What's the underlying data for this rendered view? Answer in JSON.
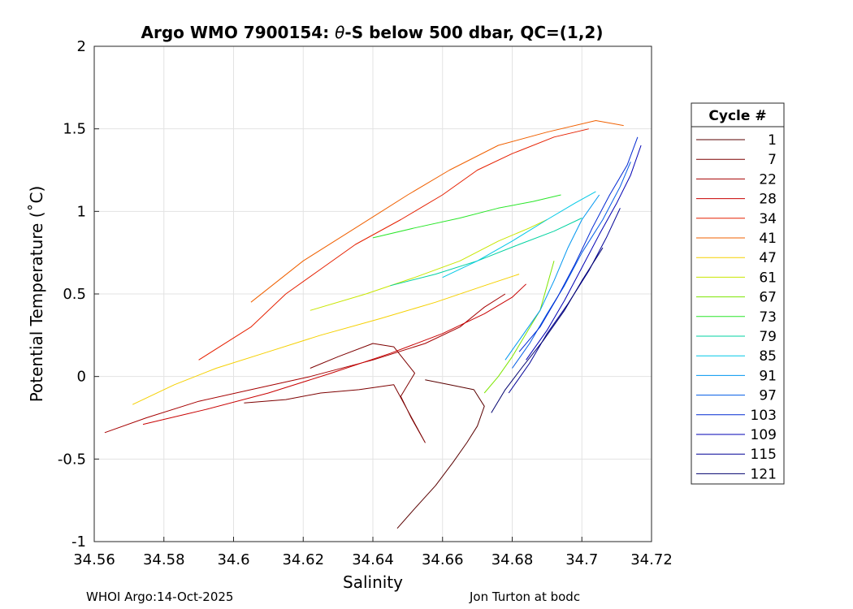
{
  "chart_data": {
    "type": "line",
    "title_prefix": "Argo WMO 7900154: ",
    "title_theta": "θ",
    "title_suffix": "-S below 500 dbar,  QC=(1,2)",
    "xlabel": "Salinity",
    "ylabel": "Potential Temperature (˚C)",
    "xlim": [
      34.56,
      34.72
    ],
    "ylim": [
      -1,
      2
    ],
    "xticks": [
      34.56,
      34.58,
      34.6,
      34.62,
      34.64,
      34.66,
      34.68,
      34.7,
      34.72
    ],
    "xtick_labels": [
      "34.56",
      "34.58",
      "34.6",
      "34.62",
      "34.64",
      "34.66",
      "34.68",
      "34.7",
      "34.72"
    ],
    "yticks": [
      -1,
      -0.5,
      0,
      0.5,
      1,
      1.5,
      2
    ],
    "ytick_labels": [
      "-1",
      "-0.5",
      "0",
      "0.5",
      "1",
      "1.5",
      "2"
    ],
    "grid": true,
    "legend_title": "Cycle #",
    "legend_position": "right",
    "series": [
      {
        "name": "1",
        "color": "#5a0000",
        "points": [
          [
            34.647,
            -0.92
          ],
          [
            34.652,
            -0.8
          ],
          [
            34.658,
            -0.66
          ],
          [
            34.663,
            -0.52
          ],
          [
            34.667,
            -0.4
          ],
          [
            34.67,
            -0.3
          ],
          [
            34.672,
            -0.18
          ],
          [
            34.669,
            -0.08
          ],
          [
            34.662,
            -0.05
          ],
          [
            34.655,
            -0.02
          ]
        ]
      },
      {
        "name": "7",
        "color": "#7d0000",
        "points": [
          [
            34.603,
            -0.16
          ],
          [
            34.615,
            -0.14
          ],
          [
            34.625,
            -0.1
          ],
          [
            34.636,
            -0.08
          ],
          [
            34.646,
            -0.05
          ],
          [
            34.655,
            -0.4
          ],
          [
            34.651,
            -0.25
          ],
          [
            34.648,
            -0.12
          ],
          [
            34.652,
            0.02
          ],
          [
            34.646,
            0.18
          ],
          [
            34.64,
            0.2
          ],
          [
            34.63,
            0.12
          ],
          [
            34.622,
            0.05
          ]
        ]
      },
      {
        "name": "22",
        "color": "#a50000",
        "points": [
          [
            34.563,
            -0.34
          ],
          [
            34.575,
            -0.25
          ],
          [
            34.59,
            -0.15
          ],
          [
            34.605,
            -0.08
          ],
          [
            34.622,
            0.0
          ],
          [
            34.64,
            0.1
          ],
          [
            34.655,
            0.2
          ],
          [
            34.665,
            0.3
          ],
          [
            34.672,
            0.42
          ],
          [
            34.678,
            0.5
          ]
        ]
      },
      {
        "name": "28",
        "color": "#c80000",
        "points": [
          [
            34.574,
            -0.29
          ],
          [
            34.592,
            -0.2
          ],
          [
            34.61,
            -0.1
          ],
          [
            34.628,
            0.02
          ],
          [
            34.645,
            0.14
          ],
          [
            34.66,
            0.26
          ],
          [
            34.672,
            0.38
          ],
          [
            34.68,
            0.48
          ],
          [
            34.684,
            0.56
          ]
        ]
      },
      {
        "name": "34",
        "color": "#e62000",
        "points": [
          [
            34.59,
            0.1
          ],
          [
            34.605,
            0.3
          ],
          [
            34.615,
            0.5
          ],
          [
            34.625,
            0.65
          ],
          [
            34.635,
            0.8
          ],
          [
            34.648,
            0.95
          ],
          [
            34.66,
            1.1
          ],
          [
            34.67,
            1.25
          ],
          [
            34.68,
            1.35
          ],
          [
            34.692,
            1.45
          ],
          [
            34.702,
            1.5
          ]
        ]
      },
      {
        "name": "41",
        "color": "#f06000",
        "points": [
          [
            34.605,
            0.45
          ],
          [
            34.62,
            0.7
          ],
          [
            34.635,
            0.9
          ],
          [
            34.65,
            1.1
          ],
          [
            34.662,
            1.25
          ],
          [
            34.676,
            1.4
          ],
          [
            34.69,
            1.48
          ],
          [
            34.704,
            1.55
          ],
          [
            34.712,
            1.52
          ]
        ]
      },
      {
        "name": "47",
        "color": "#f5d000",
        "points": [
          [
            34.571,
            -0.17
          ],
          [
            34.583,
            -0.05
          ],
          [
            34.595,
            0.05
          ],
          [
            34.61,
            0.15
          ],
          [
            34.625,
            0.25
          ],
          [
            34.642,
            0.35
          ],
          [
            34.658,
            0.45
          ],
          [
            34.672,
            0.55
          ],
          [
            34.682,
            0.62
          ]
        ]
      },
      {
        "name": "61",
        "color": "#c8e600",
        "points": [
          [
            34.622,
            0.4
          ],
          [
            34.638,
            0.5
          ],
          [
            34.652,
            0.6
          ],
          [
            34.665,
            0.7
          ],
          [
            34.676,
            0.82
          ],
          [
            34.685,
            0.9
          ],
          [
            34.69,
            0.95
          ]
        ]
      },
      {
        "name": "67",
        "color": "#7de600",
        "points": [
          [
            34.672,
            -0.1
          ],
          [
            34.676,
            0.0
          ],
          [
            34.68,
            0.12
          ],
          [
            34.684,
            0.26
          ],
          [
            34.688,
            0.4
          ],
          [
            34.69,
            0.55
          ],
          [
            34.692,
            0.7
          ]
        ]
      },
      {
        "name": "73",
        "color": "#28e628",
        "points": [
          [
            34.64,
            0.84
          ],
          [
            34.652,
            0.9
          ],
          [
            34.665,
            0.96
          ],
          [
            34.676,
            1.02
          ],
          [
            34.686,
            1.06
          ],
          [
            34.694,
            1.1
          ]
        ]
      },
      {
        "name": "79",
        "color": "#00d2a0",
        "points": [
          [
            34.645,
            0.55
          ],
          [
            34.658,
            0.62
          ],
          [
            34.67,
            0.7
          ],
          [
            34.682,
            0.8
          ],
          [
            34.692,
            0.88
          ],
          [
            34.7,
            0.96
          ]
        ]
      },
      {
        "name": "85",
        "color": "#00c8e6",
        "points": [
          [
            34.66,
            0.6
          ],
          [
            34.67,
            0.7
          ],
          [
            34.68,
            0.82
          ],
          [
            34.69,
            0.95
          ],
          [
            34.698,
            1.05
          ],
          [
            34.704,
            1.12
          ]
        ]
      },
      {
        "name": "91",
        "color": "#0096f0",
        "points": [
          [
            34.678,
            0.1
          ],
          [
            34.683,
            0.25
          ],
          [
            34.688,
            0.4
          ],
          [
            34.692,
            0.58
          ],
          [
            34.696,
            0.78
          ],
          [
            34.7,
            0.95
          ],
          [
            34.705,
            1.1
          ]
        ]
      },
      {
        "name": "97",
        "color": "#005ae6",
        "points": [
          [
            34.68,
            0.05
          ],
          [
            34.685,
            0.2
          ],
          [
            34.69,
            0.38
          ],
          [
            34.695,
            0.55
          ],
          [
            34.7,
            0.75
          ],
          [
            34.706,
            0.95
          ],
          [
            34.711,
            1.15
          ],
          [
            34.714,
            1.3
          ]
        ]
      },
      {
        "name": "103",
        "color": "#0028d2",
        "points": [
          [
            34.682,
            0.15
          ],
          [
            34.688,
            0.3
          ],
          [
            34.693,
            0.48
          ],
          [
            34.698,
            0.68
          ],
          [
            34.703,
            0.9
          ],
          [
            34.708,
            1.1
          ],
          [
            34.713,
            1.28
          ],
          [
            34.716,
            1.45
          ]
        ]
      },
      {
        "name": "109",
        "color": "#0000b4",
        "points": [
          [
            34.684,
            0.1
          ],
          [
            34.69,
            0.28
          ],
          [
            34.695,
            0.46
          ],
          [
            34.7,
            0.66
          ],
          [
            34.705,
            0.86
          ],
          [
            34.71,
            1.05
          ],
          [
            34.714,
            1.22
          ],
          [
            34.717,
            1.4
          ]
        ]
      },
      {
        "name": "115",
        "color": "#000096",
        "points": [
          [
            34.679,
            -0.1
          ],
          [
            34.685,
            0.08
          ],
          [
            34.69,
            0.26
          ],
          [
            34.696,
            0.44
          ],
          [
            34.702,
            0.64
          ],
          [
            34.707,
            0.84
          ],
          [
            34.711,
            1.02
          ]
        ]
      },
      {
        "name": "121",
        "color": "#00006e",
        "points": [
          [
            34.674,
            -0.22
          ],
          [
            34.678,
            -0.08
          ],
          [
            34.683,
            0.06
          ],
          [
            34.689,
            0.22
          ],
          [
            34.695,
            0.4
          ],
          [
            34.7,
            0.58
          ],
          [
            34.706,
            0.78
          ]
        ]
      }
    ]
  },
  "footer": {
    "left": "WHOI Argo:14-Oct-2025",
    "right": "Jon Turton at bodc"
  }
}
